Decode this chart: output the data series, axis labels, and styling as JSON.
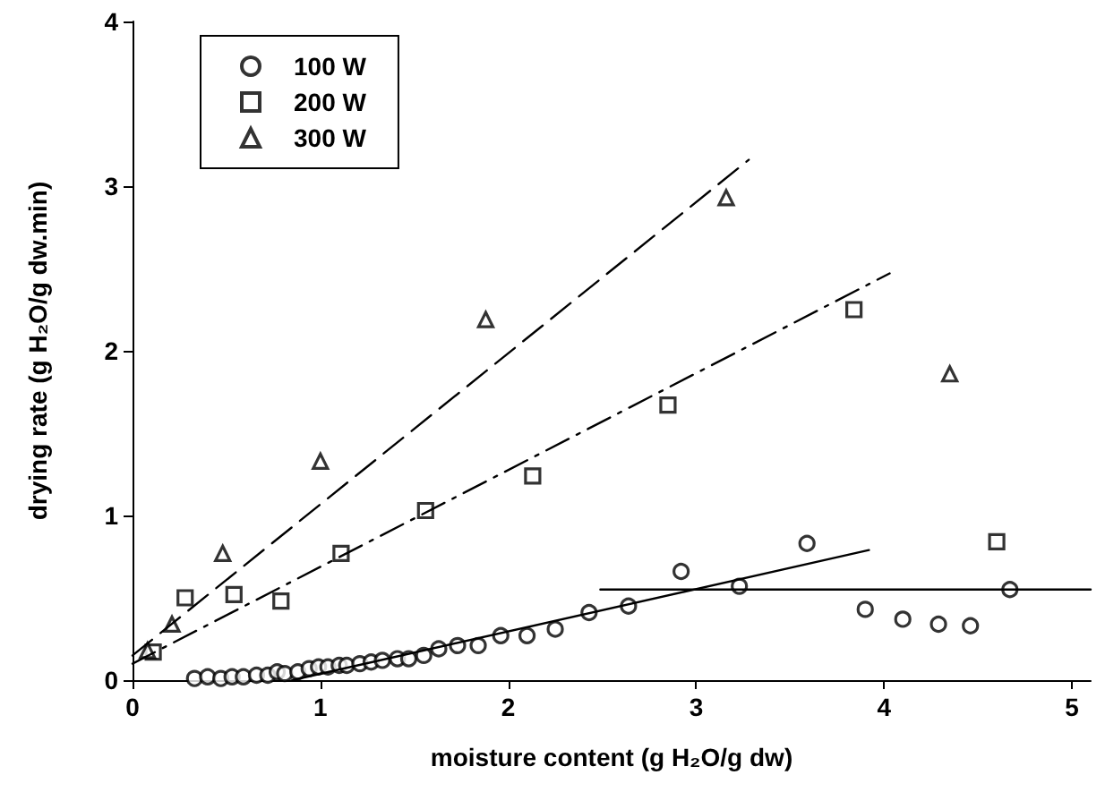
{
  "chart_data": {
    "type": "scatter",
    "xlabel": "moisture content (g H₂O/g dw)",
    "ylabel": "drying rate (g H₂O/g dw.min)",
    "xlim": [
      0,
      5.1
    ],
    "xticks": [
      0,
      1,
      2,
      3,
      4,
      5
    ],
    "ylim": [
      0,
      4
    ],
    "yticks": [
      0,
      1,
      2,
      3,
      4
    ],
    "grid": false,
    "legend": "top left",
    "series": [
      {
        "name": "100 W",
        "color": "#000000",
        "marker": "circle",
        "x": [
          0.33,
          0.4,
          0.47,
          0.53,
          0.59,
          0.66,
          0.72,
          0.77,
          0.81,
          0.88,
          0.94,
          0.99,
          1.04,
          1.1,
          1.14,
          1.21,
          1.27,
          1.33,
          1.41,
          1.47,
          1.55,
          1.63,
          1.73,
          1.84,
          1.96,
          2.1,
          2.25,
          2.43,
          2.64,
          2.92,
          3.23,
          3.59,
          3.9,
          4.1,
          4.29,
          4.46,
          4.67
        ],
        "values": [
          0.01,
          0.02,
          0.01,
          0.02,
          0.02,
          0.03,
          0.03,
          0.05,
          0.04,
          0.05,
          0.07,
          0.08,
          0.08,
          0.09,
          0.09,
          0.1,
          0.11,
          0.12,
          0.13,
          0.13,
          0.15,
          0.19,
          0.21,
          0.21,
          0.27,
          0.27,
          0.31,
          0.41,
          0.45,
          0.66,
          0.57,
          0.83,
          0.43,
          0.37,
          0.34,
          0.33,
          0.55
        ]
      },
      {
        "name": "200 W",
        "color": "#000000",
        "marker": "square",
        "x": [
          0.11,
          0.28,
          0.54,
          0.79,
          1.11,
          1.56,
          2.13,
          2.85,
          3.84,
          4.6
        ],
        "values": [
          0.17,
          0.5,
          0.52,
          0.48,
          0.77,
          1.03,
          1.24,
          1.67,
          2.25,
          0.84
        ]
      },
      {
        "name": "300 W",
        "color": "#000000",
        "marker": "triangle",
        "x": [
          0.08,
          0.21,
          0.48,
          1.0,
          1.88,
          3.16,
          4.35
        ],
        "values": [
          0.18,
          0.34,
          0.77,
          1.33,
          2.19,
          2.93,
          1.86
        ]
      },
      {
        "type": "line",
        "color": "#000000",
        "marker": "none",
        "line_style": "solid",
        "x": [
          0.85,
          3.92
        ],
        "values": [
          0,
          0.79
        ]
      },
      {
        "type": "line",
        "color": "#000000",
        "marker": "none",
        "line_style": "solid",
        "x": [
          2.49,
          5.1
        ],
        "values": [
          0.55,
          0.55
        ]
      },
      {
        "type": "line",
        "color": "#000000",
        "marker": "none",
        "line_style": "dashdot",
        "x": [
          0,
          4.03
        ],
        "values": [
          0.1,
          2.47
        ]
      },
      {
        "type": "line",
        "color": "#000000",
        "marker": "none",
        "line_style": "dashed",
        "x": [
          0,
          3.28
        ],
        "values": [
          0.15,
          3.16
        ]
      }
    ]
  }
}
